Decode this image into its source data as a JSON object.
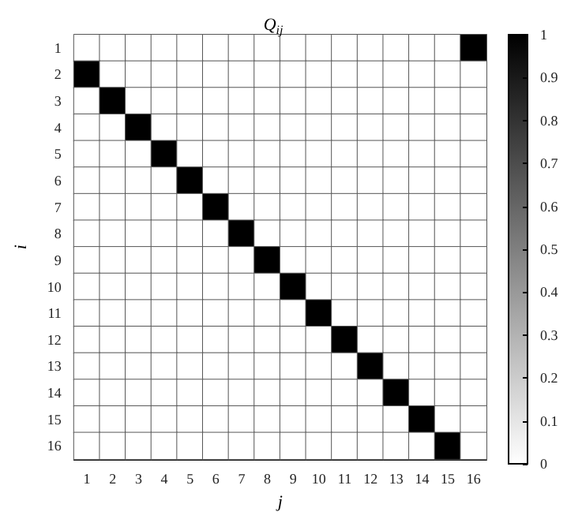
{
  "chart_data": {
    "type": "heatmap",
    "title": "Q$_{ij}$",
    "xlabel": "j",
    "ylabel": "i",
    "categories": [
      "1",
      "2",
      "3",
      "4",
      "5",
      "6",
      "7",
      "8",
      "9",
      "10",
      "11",
      "12",
      "13",
      "14",
      "15",
      "16"
    ],
    "y_categories": [
      "1",
      "2",
      "3",
      "4",
      "5",
      "6",
      "7",
      "8",
      "9",
      "10",
      "11",
      "12",
      "13",
      "14",
      "15",
      "16"
    ],
    "cells": [
      [
        0,
        0,
        0,
        0,
        0,
        0,
        0,
        0,
        0,
        0,
        0,
        0,
        0,
        0,
        0,
        1
      ],
      [
        1,
        0,
        0,
        0,
        0,
        0,
        0,
        0,
        0,
        0,
        0,
        0,
        0,
        0,
        0,
        0
      ],
      [
        0,
        1,
        0,
        0,
        0,
        0,
        0,
        0,
        0,
        0,
        0,
        0,
        0,
        0,
        0,
        0
      ],
      [
        0,
        0,
        1,
        0,
        0,
        0,
        0,
        0,
        0,
        0,
        0,
        0,
        0,
        0,
        0,
        0
      ],
      [
        0,
        0,
        0,
        1,
        0,
        0,
        0,
        0,
        0,
        0,
        0,
        0,
        0,
        0,
        0,
        0
      ],
      [
        0,
        0,
        0,
        0,
        1,
        0,
        0,
        0,
        0,
        0,
        0,
        0,
        0,
        0,
        0,
        0
      ],
      [
        0,
        0,
        0,
        0,
        0,
        1,
        0,
        0,
        0,
        0,
        0,
        0,
        0,
        0,
        0,
        0
      ],
      [
        0,
        0,
        0,
        0,
        0,
        0,
        1,
        0,
        0,
        0,
        0,
        0,
        0,
        0,
        0,
        0
      ],
      [
        0,
        0,
        0,
        0,
        0,
        0,
        0,
        1,
        0,
        0,
        0,
        0,
        0,
        0,
        0,
        0
      ],
      [
        0,
        0,
        0,
        0,
        0,
        0,
        0,
        0,
        1,
        0,
        0,
        0,
        0,
        0,
        0,
        0
      ],
      [
        0,
        0,
        0,
        0,
        0,
        0,
        0,
        0,
        0,
        1,
        0,
        0,
        0,
        0,
        0,
        0
      ],
      [
        0,
        0,
        0,
        0,
        0,
        0,
        0,
        0,
        0,
        0,
        1,
        0,
        0,
        0,
        0,
        0
      ],
      [
        0,
        0,
        0,
        0,
        0,
        0,
        0,
        0,
        0,
        0,
        0,
        1,
        0,
        0,
        0,
        0
      ],
      [
        0,
        0,
        0,
        0,
        0,
        0,
        0,
        0,
        0,
        0,
        0,
        0,
        1,
        0,
        0,
        0
      ],
      [
        0,
        0,
        0,
        0,
        0,
        0,
        0,
        0,
        0,
        0,
        0,
        0,
        0,
        1,
        0,
        0
      ],
      [
        0,
        0,
        0,
        0,
        0,
        0,
        0,
        0,
        0,
        0,
        0,
        0,
        0,
        0,
        1,
        0
      ]
    ],
    "clim": [
      0,
      1
    ],
    "cticks": [
      0,
      0.1,
      0.2,
      0.3,
      0.4,
      0.5,
      0.6,
      0.7,
      0.8,
      0.9,
      1
    ]
  }
}
